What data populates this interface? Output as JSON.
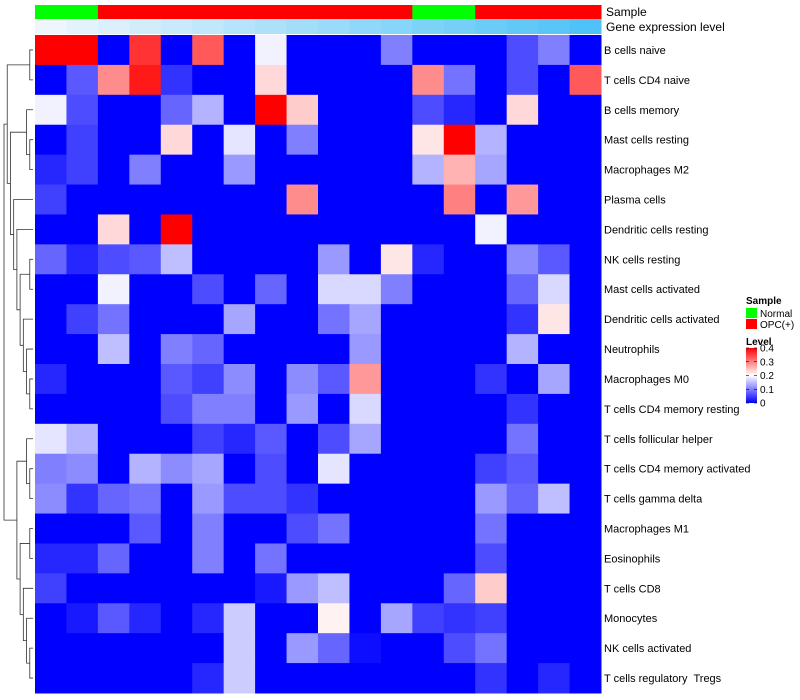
{
  "chart_data": {
    "type": "heatmap",
    "title": "",
    "annotation_tracks": [
      {
        "name": "Sample",
        "values": [
          "Normal",
          "Normal",
          "OPC(+)",
          "OPC(+)",
          "OPC(+)",
          "OPC(+)",
          "OPC(+)",
          "OPC(+)",
          "OPC(+)",
          "OPC(+)",
          "OPC(+)",
          "OPC(+)",
          "Normal",
          "Normal",
          "OPC(+)",
          "OPC(+)",
          "OPC(+)",
          "OPC(+)"
        ]
      },
      {
        "name": "Gene expression level",
        "values": [
          0.0,
          0.06,
          0.12,
          0.18,
          0.24,
          0.29,
          0.35,
          0.41,
          0.47,
          0.53,
          0.59,
          0.65,
          0.71,
          0.76,
          0.82,
          0.88,
          0.94,
          1.0
        ]
      }
    ],
    "rows": [
      "B cells naive",
      "T cells CD4 naive",
      "B cells memory",
      "Mast cells resting",
      "Macrophages M2",
      "Plasma cells",
      "Dendritic cells resting",
      "NK cells resting",
      "Mast cells activated",
      "Dendritic cells activated",
      "Neutrophils",
      "Macrophages M0",
      "T cells CD4 memory resting",
      "T cells follicular helper",
      "T cells CD4 memory activated",
      "T cells gamma delta",
      "Macrophages M1",
      "Eosinophils",
      "T cells CD8",
      "Monocytes",
      "NK cells activated",
      "T cells regulatory  Tregs"
    ],
    "values": [
      [
        0.4,
        0.4,
        0.0,
        0.36,
        0.0,
        0.33,
        0.0,
        0.19,
        0.0,
        0.0,
        0.0,
        0.1,
        0.0,
        0.0,
        0.0,
        0.06,
        0.1,
        0.0
      ],
      [
        0.0,
        0.07,
        0.29,
        0.38,
        0.04,
        0.0,
        0.0,
        0.23,
        0.0,
        0.0,
        0.0,
        0.0,
        0.29,
        0.09,
        0.0,
        0.06,
        0.0,
        0.33
      ],
      [
        0.19,
        0.06,
        0.0,
        0.0,
        0.08,
        0.14,
        0.0,
        0.4,
        0.24,
        0.0,
        0.0,
        0.0,
        0.06,
        0.03,
        0.0,
        0.23,
        0.0,
        0.0
      ],
      [
        0.0,
        0.05,
        0.0,
        0.0,
        0.23,
        0.0,
        0.18,
        0.0,
        0.1,
        0.0,
        0.0,
        0.0,
        0.22,
        0.4,
        0.14,
        0.0,
        0.0,
        0.0
      ],
      [
        0.03,
        0.05,
        0.0,
        0.1,
        0.0,
        0.0,
        0.12,
        0.0,
        0.0,
        0.0,
        0.0,
        0.0,
        0.14,
        0.26,
        0.13,
        0.0,
        0.0,
        0.0
      ],
      [
        0.05,
        0.0,
        0.0,
        0.0,
        0.0,
        0.0,
        0.0,
        0.0,
        0.29,
        0.0,
        0.0,
        0.0,
        0.0,
        0.3,
        0.0,
        0.28,
        0.0,
        0.0
      ],
      [
        0.0,
        0.0,
        0.23,
        0.0,
        0.4,
        0.0,
        0.0,
        0.0,
        0.0,
        0.0,
        0.0,
        0.0,
        0.0,
        0.0,
        0.19,
        0.0,
        0.0,
        0.0
      ],
      [
        0.08,
        0.03,
        0.06,
        0.07,
        0.15,
        0.0,
        0.0,
        0.0,
        0.0,
        0.12,
        0.0,
        0.22,
        0.03,
        0.0,
        0.0,
        0.11,
        0.07,
        0.0
      ],
      [
        0.0,
        0.0,
        0.19,
        0.0,
        0.0,
        0.06,
        0.0,
        0.08,
        0.0,
        0.17,
        0.17,
        0.1,
        0.0,
        0.0,
        0.0,
        0.08,
        0.17,
        0.0
      ],
      [
        0.0,
        0.05,
        0.09,
        0.0,
        0.0,
        0.0,
        0.13,
        0.0,
        0.0,
        0.09,
        0.13,
        0.0,
        0.0,
        0.0,
        0.0,
        0.04,
        0.22,
        0.0
      ],
      [
        0.0,
        0.0,
        0.15,
        0.0,
        0.1,
        0.08,
        0.0,
        0.0,
        0.0,
        0.0,
        0.12,
        0.0,
        0.0,
        0.0,
        0.0,
        0.14,
        0.0,
        0.0
      ],
      [
        0.03,
        0.0,
        0.0,
        0.0,
        0.07,
        0.05,
        0.11,
        0.0,
        0.11,
        0.07,
        0.28,
        0.0,
        0.0,
        0.0,
        0.04,
        0.0,
        0.13,
        0.0
      ],
      [
        0.0,
        0.0,
        0.0,
        0.0,
        0.06,
        0.1,
        0.1,
        0.0,
        0.12,
        0.0,
        0.17,
        0.0,
        0.0,
        0.0,
        0.0,
        0.04,
        0.0,
        0.0
      ],
      [
        0.18,
        0.14,
        0.0,
        0.0,
        0.0,
        0.05,
        0.03,
        0.07,
        0.0,
        0.06,
        0.13,
        0.0,
        0.0,
        0.0,
        0.0,
        0.09,
        0.0,
        0.0
      ],
      [
        0.1,
        0.11,
        0.0,
        0.14,
        0.11,
        0.13,
        0.0,
        0.06,
        0.0,
        0.18,
        0.0,
        0.0,
        0.0,
        0.0,
        0.05,
        0.07,
        0.0,
        0.0
      ],
      [
        0.11,
        0.04,
        0.08,
        0.09,
        0.0,
        0.12,
        0.06,
        0.06,
        0.04,
        0.0,
        0.0,
        0.0,
        0.0,
        0.0,
        0.12,
        0.08,
        0.15,
        0.0
      ],
      [
        0.0,
        0.0,
        0.0,
        0.07,
        0.0,
        0.1,
        0.0,
        0.0,
        0.06,
        0.09,
        0.0,
        0.0,
        0.0,
        0.0,
        0.09,
        0.0,
        0.0,
        0.0
      ],
      [
        0.03,
        0.03,
        0.08,
        0.0,
        0.0,
        0.1,
        0.0,
        0.09,
        0.0,
        0.0,
        0.0,
        0.0,
        0.0,
        0.0,
        0.06,
        0.0,
        0.0,
        0.0
      ],
      [
        0.05,
        0.0,
        0.0,
        0.0,
        0.0,
        0.0,
        0.0,
        0.02,
        0.12,
        0.15,
        0.0,
        0.0,
        0.0,
        0.08,
        0.24,
        0.0,
        0.0,
        0.0
      ],
      [
        0.0,
        0.02,
        0.07,
        0.03,
        0.0,
        0.03,
        0.16,
        0.0,
        0.0,
        0.21,
        0.0,
        0.13,
        0.05,
        0.04,
        0.05,
        0.0,
        0.0,
        0.0
      ],
      [
        0.0,
        0.0,
        0.0,
        0.0,
        0.0,
        0.0,
        0.16,
        0.0,
        0.12,
        0.08,
        0.01,
        0.0,
        0.0,
        0.06,
        0.09,
        0.0,
        0.0,
        0.0
      ],
      [
        0.0,
        0.0,
        0.0,
        0.0,
        0.0,
        0.03,
        0.16,
        0.0,
        0.0,
        0.0,
        0.0,
        0.0,
        0.0,
        0.0,
        0.04,
        0.0,
        0.03,
        0.0
      ]
    ],
    "color_scale": {
      "min": 0,
      "mid": 0.2,
      "max": 0.4,
      "low_color": "#0000ff",
      "mid_color": "#ffffff",
      "high_color": "#ff0000"
    },
    "sample_colors": {
      "Normal": "#00ff00",
      "OPC(+)": "#ff0000"
    },
    "expression_colors": [
      "#eef6fb",
      "#4fc3f7"
    ],
    "legend": {
      "sample_title": "Sample",
      "sample_items": [
        "Normal",
        "OPC(+)"
      ],
      "level_title": "Level",
      "level_ticks": [
        "0.4",
        "0.3",
        "0.2",
        "0.1",
        "0"
      ],
      "level_tick_values": [
        0.4,
        0.3,
        0.2,
        0.1,
        0.0
      ],
      "placement": "right"
    },
    "row_dendrogram": "left"
  }
}
